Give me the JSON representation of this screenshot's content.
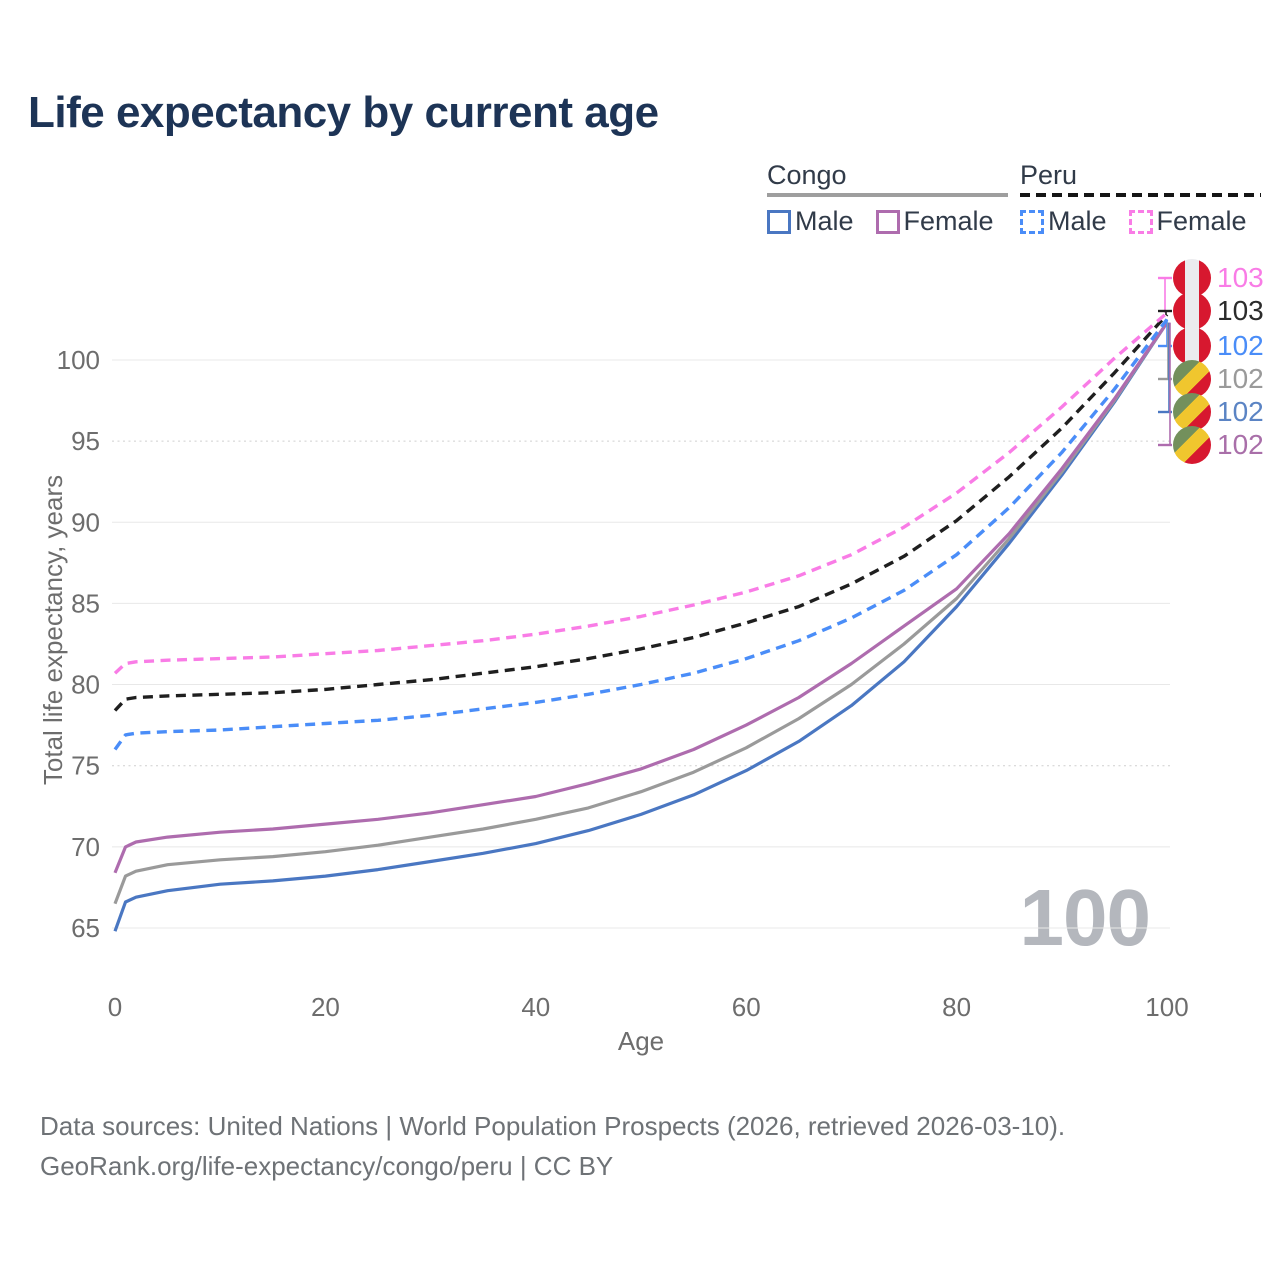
{
  "title": "Life expectancy by current age",
  "watermark": "100",
  "legend": {
    "groups": [
      {
        "label": "Congo",
        "line_style": "solid",
        "line_color": "#9e9e9e",
        "entries": [
          {
            "label": "Male",
            "color": "#4a77c2",
            "dashed": false
          },
          {
            "label": "Female",
            "color": "#ae6cae",
            "dashed": false
          }
        ]
      },
      {
        "label": "Peru",
        "line_style": "dashed",
        "line_color": "#151515",
        "entries": [
          {
            "label": "Male",
            "color": "#4a8df8",
            "dashed": true
          },
          {
            "label": "Female",
            "color": "#f97ce6",
            "dashed": true
          }
        ]
      }
    ]
  },
  "footer": {
    "line1": "Data sources: United Nations | World Population Prospects (2026, retrieved 2026-03-10).",
    "line2": "GeoRank.org/life-expectancy/congo/peru | CC BY"
  },
  "chart_data": {
    "type": "line",
    "title": "Life expectancy by current age",
    "xlabel": "Age",
    "ylabel": "Total life expectancy, years",
    "xlim": [
      0,
      100
    ],
    "ylim": [
      63.5,
      104.5
    ],
    "x_ticks": [
      0,
      20,
      40,
      60,
      80,
      100
    ],
    "y_ticks": [
      65,
      70,
      75,
      80,
      85,
      90,
      95,
      100
    ],
    "dotted_y_gridlines": [
      75,
      95
    ],
    "grid": true,
    "legend_position": "top-right",
    "x": [
      0,
      1,
      2,
      5,
      10,
      15,
      20,
      25,
      30,
      35,
      40,
      45,
      50,
      55,
      60,
      65,
      70,
      75,
      80,
      85,
      90,
      95,
      100
    ],
    "series": [
      {
        "name": "Congo Male",
        "country": "Congo",
        "sex": "male",
        "color": "#4a77c2",
        "dash": "solid",
        "values": [
          64.8,
          66.6,
          66.9,
          67.3,
          67.7,
          67.9,
          68.2,
          68.6,
          69.1,
          69.6,
          70.2,
          71.0,
          72.0,
          73.2,
          74.7,
          76.5,
          78.7,
          81.4,
          84.8,
          88.7,
          92.9,
          97.4,
          102.3
        ]
      },
      {
        "name": "Congo",
        "country": "Congo",
        "sex": "total",
        "color": "#9a9a9a",
        "dash": "solid",
        "values": [
          66.5,
          68.2,
          68.5,
          68.9,
          69.2,
          69.4,
          69.7,
          70.1,
          70.6,
          71.1,
          71.7,
          72.4,
          73.4,
          74.6,
          76.1,
          77.9,
          80.0,
          82.5,
          85.3,
          89.0,
          93.1,
          97.5,
          102.3
        ]
      },
      {
        "name": "Congo Female",
        "country": "Congo",
        "sex": "female",
        "color": "#ae6cae",
        "dash": "solid",
        "values": [
          68.4,
          70.0,
          70.3,
          70.6,
          70.9,
          71.1,
          71.4,
          71.7,
          72.1,
          72.6,
          73.1,
          73.9,
          74.8,
          76.0,
          77.5,
          79.2,
          81.3,
          83.6,
          85.9,
          89.3,
          93.3,
          97.6,
          102.3
        ]
      },
      {
        "name": "Peru Male",
        "country": "Peru",
        "sex": "male",
        "color": "#4a8df8",
        "dash": "dashed",
        "values": [
          76.0,
          76.9,
          77.0,
          77.1,
          77.2,
          77.4,
          77.6,
          77.8,
          78.1,
          78.5,
          78.9,
          79.4,
          80.0,
          80.7,
          81.6,
          82.7,
          84.1,
          85.8,
          88.0,
          90.9,
          94.3,
          98.2,
          102.5
        ]
      },
      {
        "name": "Peru",
        "country": "Peru",
        "sex": "total",
        "color": "#1f1f1f",
        "dash": "dashed",
        "values": [
          78.4,
          79.1,
          79.2,
          79.3,
          79.4,
          79.5,
          79.7,
          80.0,
          80.3,
          80.7,
          81.1,
          81.6,
          82.2,
          82.9,
          83.8,
          84.8,
          86.2,
          87.9,
          90.1,
          92.8,
          95.8,
          99.2,
          102.8
        ]
      },
      {
        "name": "Peru Female",
        "country": "Peru",
        "sex": "female",
        "color": "#f97ce6",
        "dash": "dashed",
        "values": [
          80.7,
          81.3,
          81.4,
          81.5,
          81.6,
          81.7,
          81.9,
          82.1,
          82.4,
          82.7,
          83.1,
          83.6,
          84.2,
          84.9,
          85.7,
          86.7,
          88.0,
          89.7,
          91.8,
          94.3,
          97.1,
          100.1,
          102.9
        ]
      }
    ],
    "end_labels_top_to_bottom": [
      {
        "series": "Peru Female",
        "text": "103",
        "flag": "peru",
        "color": "#f97ce6"
      },
      {
        "series": "Peru",
        "text": "103",
        "flag": "peru",
        "color": "#2b2b2b"
      },
      {
        "series": "Peru Male",
        "text": "102",
        "flag": "peru",
        "color": "#4a8df8"
      },
      {
        "series": "Congo",
        "text": "102",
        "flag": "congo",
        "color": "#9a9a9a"
      },
      {
        "series": "Congo Male",
        "text": "102",
        "flag": "congo",
        "color": "#5b84c4"
      },
      {
        "series": "Congo Female",
        "text": "102",
        "flag": "congo",
        "color": "#a96fa9"
      }
    ]
  }
}
